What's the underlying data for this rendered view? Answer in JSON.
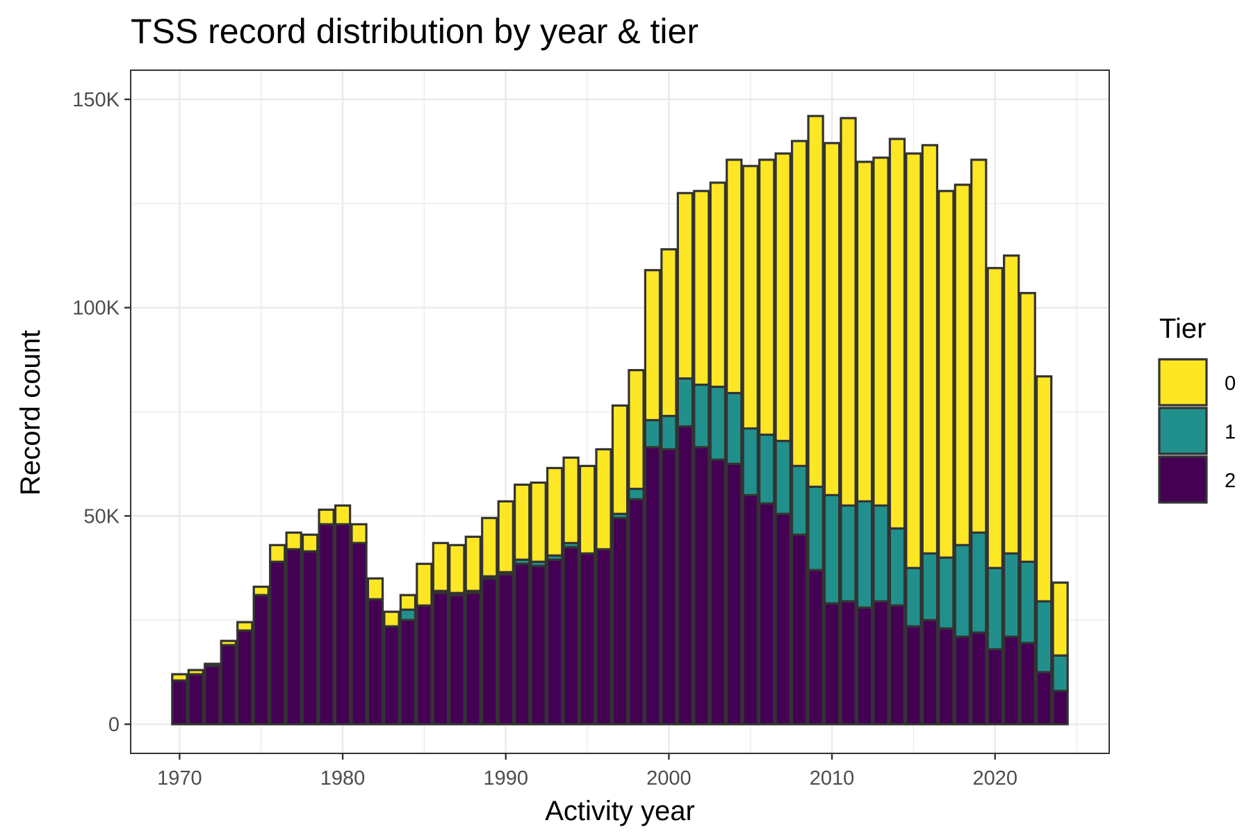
{
  "chart_data": {
    "type": "bar",
    "stacked": true,
    "title": "TSS record distribution by year & tier",
    "xlabel": "Activity year",
    "ylabel": "Record count",
    "xlim": [
      1967,
      2027
    ],
    "ylim": [
      -7000,
      157000
    ],
    "x_ticks": [
      {
        "value": 1970,
        "label": "1970"
      },
      {
        "value": 1980,
        "label": "1980"
      },
      {
        "value": 1990,
        "label": "1990"
      },
      {
        "value": 2000,
        "label": "2000"
      },
      {
        "value": 2010,
        "label": "2010"
      },
      {
        "value": 2020,
        "label": "2020"
      }
    ],
    "y_ticks": [
      {
        "value": 0,
        "label": "0"
      },
      {
        "value": 50000,
        "label": "50K"
      },
      {
        "value": 100000,
        "label": "100K"
      },
      {
        "value": 150000,
        "label": "150K"
      }
    ],
    "grid": true,
    "legend": {
      "title": "Tier",
      "position": "right"
    },
    "stack_order": [
      "2",
      "1",
      "0"
    ],
    "categories": [
      1970,
      1971,
      1972,
      1973,
      1974,
      1975,
      1976,
      1977,
      1978,
      1979,
      1980,
      1981,
      1982,
      1983,
      1984,
      1985,
      1986,
      1987,
      1988,
      1989,
      1990,
      1991,
      1992,
      1993,
      1994,
      1995,
      1996,
      1997,
      1998,
      1999,
      2000,
      2001,
      2002,
      2003,
      2004,
      2005,
      2006,
      2007,
      2008,
      2009,
      2010,
      2011,
      2012,
      2013,
      2014,
      2015,
      2016,
      2017,
      2018,
      2019,
      2020,
      2021,
      2022,
      2023,
      2024
    ],
    "series": [
      {
        "name": "0",
        "color": "#FDE725",
        "values": [
          1500,
          1000,
          500,
          1000,
          2000,
          2000,
          4000,
          4000,
          4000,
          3500,
          4500,
          4500,
          5000,
          3500,
          3500,
          10000,
          11500,
          11500,
          13000,
          14000,
          17000,
          18000,
          19000,
          21000,
          20500,
          21000,
          24000,
          26000,
          28500,
          36000,
          40000,
          44500,
          46500,
          49000,
          56000,
          63000,
          66000,
          69000,
          78000,
          89000,
          84500,
          93000,
          81500,
          83500,
          93500,
          99500,
          98000,
          88000,
          86500,
          89500,
          72000,
          71500,
          64500,
          54000,
          17500
        ]
      },
      {
        "name": "1",
        "color": "#21908C",
        "values": [
          0,
          0,
          0,
          0,
          0,
          0,
          0,
          0,
          0,
          0,
          0,
          0,
          0,
          0,
          2500,
          0,
          500,
          500,
          500,
          500,
          500,
          1000,
          1000,
          1000,
          1000,
          0,
          0,
          1000,
          2500,
          6500,
          8000,
          11500,
          15000,
          17500,
          17000,
          16000,
          16500,
          17500,
          16500,
          20000,
          26000,
          23000,
          25500,
          23000,
          18500,
          14000,
          16000,
          17000,
          22000,
          24000,
          19500,
          20000,
          19500,
          17000,
          8500
        ]
      },
      {
        "name": "2",
        "color": "#440154",
        "values": [
          10500,
          12000,
          14000,
          19000,
          22500,
          31000,
          39000,
          42000,
          41500,
          48000,
          48000,
          43500,
          30000,
          23500,
          25000,
          28500,
          31500,
          31000,
          31500,
          35000,
          36000,
          38500,
          38000,
          39500,
          42500,
          41000,
          42000,
          49500,
          54000,
          66500,
          66000,
          71500,
          66500,
          63500,
          62500,
          55000,
          53000,
          50500,
          45500,
          37000,
          29000,
          29500,
          28000,
          29500,
          28500,
          23500,
          25000,
          23000,
          21000,
          22000,
          18000,
          21000,
          19500,
          12500,
          8000
        ]
      }
    ]
  }
}
